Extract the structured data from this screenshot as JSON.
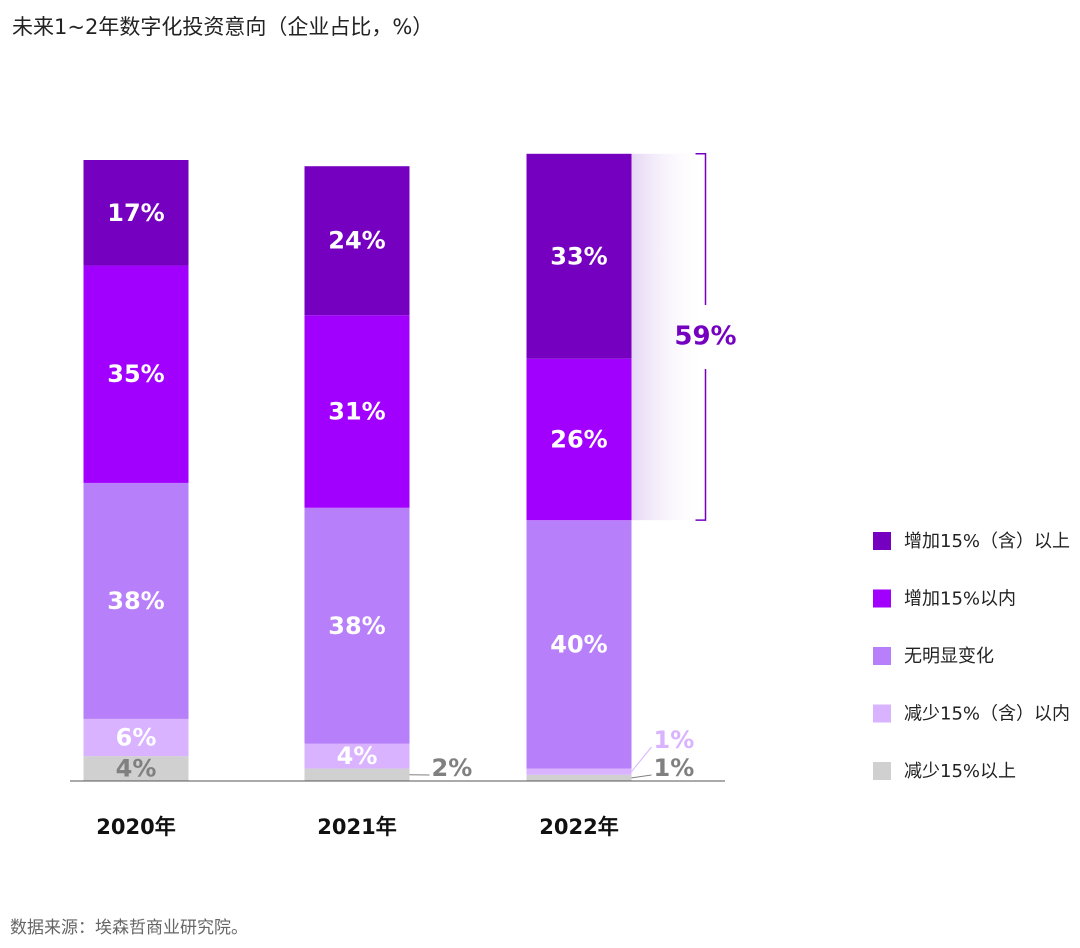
{
  "chart_data": {
    "type": "stacked_bar",
    "title": "未来1~2年数字化投资意向（企业占比，%）",
    "source": "数据来源：埃森哲商业研究院。",
    "annotation": "59%",
    "categories": [
      "2020年",
      "2021年",
      "2022年"
    ],
    "ylim": [
      0,
      100
    ],
    "series": [
      {
        "name": "减少15%以上",
        "color": "#d0d0d0",
        "values": [
          4,
          2,
          1
        ],
        "value_labels": [
          "4%",
          "2%",
          "1%"
        ]
      },
      {
        "name": "减少15%（含）以内",
        "color": "#d9b3ff",
        "values": [
          6,
          4,
          1
        ],
        "value_labels": [
          "6%",
          "4%",
          "1%"
        ]
      },
      {
        "name": "无明显变化",
        "color": "#b77ff9",
        "values": [
          38,
          38,
          40
        ],
        "value_labels": [
          "38%",
          "38%",
          "40%"
        ]
      },
      {
        "name": "增加15%以内",
        "color": "#a100ff",
        "values": [
          35,
          31,
          26
        ],
        "value_labels": [
          "35%",
          "31%",
          "26%"
        ]
      },
      {
        "name": "增加15%（含）以上",
        "color": "#7500c0",
        "values": [
          17,
          24,
          33
        ],
        "value_labels": [
          "17%",
          "24%",
          "33%"
        ]
      }
    ]
  }
}
